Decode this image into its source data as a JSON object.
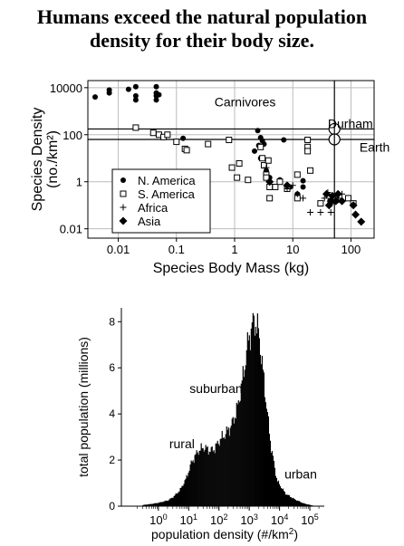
{
  "title_lines": [
    "Humans exceed the natural population",
    "density for their body size."
  ],
  "chart_data": [
    {
      "type": "scatter",
      "x_scale": "log",
      "y_scale": "log",
      "xlim": [
        0.003,
        250
      ],
      "ylim": [
        0.004,
        20000
      ],
      "xticks": [
        {
          "v": 0.01,
          "label": "0.01"
        },
        {
          "v": 0.1,
          "label": "0.1"
        },
        {
          "v": 1,
          "label": "1"
        },
        {
          "v": 10,
          "label": "10"
        },
        {
          "v": 100,
          "label": "100"
        }
      ],
      "yticks": [
        {
          "v": 10000,
          "label": "10000"
        },
        {
          "v": 100,
          "label": "100"
        },
        {
          "v": 1,
          "label": "1"
        },
        {
          "v": 0.01,
          "label": "0.01"
        }
      ],
      "xlabel": "Species Body Mass  (kg)",
      "ylabel_lines": [
        "Species Density",
        "(no./km²)"
      ],
      "grid": true,
      "annotations": [
        {
          "text": "Carnivores",
          "x": 0.45,
          "y": 2500
        },
        {
          "text": "Durham",
          "x": 40,
          "y": 300
        },
        {
          "text": "Earth",
          "x": 140,
          "y": 30
        }
      ],
      "reference_lines": [
        {
          "name": "Durham",
          "x": 52,
          "y": 175
        },
        {
          "name": "Earth",
          "x": 52,
          "y": 63
        }
      ],
      "legend_position": "bottom-left",
      "series": [
        {
          "name": "N. America",
          "marker": "filled-circle",
          "points": [
            [
              0.004,
              4000
            ],
            [
              0.007,
              6000
            ],
            [
              0.007,
              8000
            ],
            [
              0.015,
              8500
            ],
            [
              0.02,
              11000
            ],
            [
              0.02,
              3000
            ],
            [
              0.02,
              4500
            ],
            [
              0.045,
              11000
            ],
            [
              0.045,
              6000
            ],
            [
              0.045,
              4500
            ],
            [
              0.045,
              3000
            ],
            [
              0.05,
              5000
            ],
            [
              0.13,
              70
            ],
            [
              2.5,
              150
            ],
            [
              2.8,
              75
            ],
            [
              3,
              55
            ],
            [
              2.6,
              35
            ],
            [
              3.2,
              40
            ],
            [
              7,
              60
            ],
            [
              2.2,
              20
            ],
            [
              2.8,
              10
            ],
            [
              3.5,
              3
            ],
            [
              4,
              1.5
            ],
            [
              6,
              1.2
            ],
            [
              9,
              0.6
            ],
            [
              12,
              0.3
            ],
            [
              15,
              0.6
            ],
            [
              15,
              1.1
            ]
          ]
        },
        {
          "name": "S. America",
          "marker": "open-square",
          "points": [
            [
              0.02,
              200
            ],
            [
              0.04,
              120
            ],
            [
              0.05,
              100
            ],
            [
              0.06,
              80
            ],
            [
              0.07,
              100
            ],
            [
              0.1,
              50
            ],
            [
              0.14,
              25
            ],
            [
              0.15,
              22
            ],
            [
              0.35,
              40
            ],
            [
              0.8,
              60
            ],
            [
              0.9,
              4
            ],
            [
              1.1,
              1.5
            ],
            [
              1.2,
              6
            ],
            [
              1.7,
              1.2
            ],
            [
              2.8,
              30
            ],
            [
              3,
              10
            ],
            [
              3.2,
              5
            ],
            [
              3.5,
              2
            ],
            [
              3.5,
              1.5
            ],
            [
              3.8,
              8
            ],
            [
              4,
              0.2
            ],
            [
              4,
              0.6
            ],
            [
              5,
              0.6
            ],
            [
              6,
              1
            ],
            [
              8,
              0.5
            ],
            [
              12,
              0.2
            ],
            [
              12,
              2
            ],
            [
              18,
              60
            ],
            [
              18,
              30
            ],
            [
              18,
              20
            ],
            [
              20,
              3
            ],
            [
              30,
              0.12
            ],
            [
              45,
              0.15
            ],
            [
              55,
              0.17
            ],
            [
              90,
              0.2
            ],
            [
              110,
              0.12
            ]
          ]
        },
        {
          "name": "Africa",
          "marker": "plus",
          "points": [
            [
              3.5,
              4
            ],
            [
              8,
              0.5
            ],
            [
              10,
              0.7
            ],
            [
              12,
              0.3
            ],
            [
              15,
              0.2
            ],
            [
              20,
              0.05
            ],
            [
              30,
              0.05
            ],
            [
              35,
              0.2
            ],
            [
              40,
              0.35
            ],
            [
              45,
              0.05
            ],
            [
              60,
              0.2
            ],
            [
              70,
              0.3
            ]
          ]
        },
        {
          "name": "Asia",
          "marker": "filled-diamond",
          "points": [
            [
              4,
              1
            ],
            [
              8,
              0.7
            ],
            [
              38,
              0.3
            ],
            [
              42,
              0.1
            ],
            [
              45,
              0.15
            ],
            [
              48,
              0.25
            ],
            [
              55,
              0.15
            ],
            [
              60,
              0.3
            ],
            [
              70,
              0.15
            ],
            [
              110,
              0.1
            ],
            [
              120,
              0.04
            ],
            [
              150,
              0.02
            ]
          ]
        }
      ]
    },
    {
      "type": "bar",
      "x_scale": "log",
      "xlim": [
        0.06,
        300000
      ],
      "ylim": [
        0,
        8.6
      ],
      "xticks": [
        {
          "v": 1,
          "base": "10",
          "exp": "0"
        },
        {
          "v": 10,
          "base": "10",
          "exp": "1"
        },
        {
          "v": 100,
          "base": "10",
          "exp": "2"
        },
        {
          "v": 1000,
          "base": "10",
          "exp": "3"
        },
        {
          "v": 10000,
          "base": "10",
          "exp": "4"
        },
        {
          "v": 100000,
          "base": "10",
          "exp": "5"
        }
      ],
      "yticks": [
        {
          "v": 0,
          "label": "0"
        },
        {
          "v": 2,
          "label": "2"
        },
        {
          "v": 4,
          "label": "4"
        },
        {
          "v": 6,
          "label": "6"
        },
        {
          "v": 8,
          "label": "8"
        }
      ],
      "xlabel": "population density (#/km²)",
      "ylabel": "total population (millions)",
      "annotations": [
        {
          "text": "suburban",
          "x": 80,
          "y": 5.1
        },
        {
          "text": "rural",
          "x": 6,
          "y": 2.7
        },
        {
          "text": "urban",
          "x": 50000,
          "y": 1.4
        }
      ],
      "profile": [
        [
          0.3,
          0.05
        ],
        [
          0.6,
          0.1
        ],
        [
          1,
          0.15
        ],
        [
          2,
          0.25
        ],
        [
          3,
          0.4
        ],
        [
          5,
          0.7
        ],
        [
          8,
          1.2
        ],
        [
          12,
          1.9
        ],
        [
          20,
          2.4
        ],
        [
          30,
          2.55
        ],
        [
          50,
          2.4
        ],
        [
          70,
          2.5
        ],
        [
          100,
          2.85
        ],
        [
          150,
          3.1
        ],
        [
          250,
          3.5
        ],
        [
          400,
          4.3
        ],
        [
          600,
          5.6
        ],
        [
          900,
          7.2
        ],
        [
          1400,
          8.1
        ],
        [
          2000,
          7.5
        ],
        [
          3000,
          5.3
        ],
        [
          5000,
          2.6
        ],
        [
          8000,
          1.1
        ],
        [
          15000,
          0.55
        ],
        [
          30000,
          0.3
        ],
        [
          60000,
          0.12
        ],
        [
          100000,
          0.05
        ],
        [
          150000,
          0.0
        ]
      ]
    }
  ]
}
